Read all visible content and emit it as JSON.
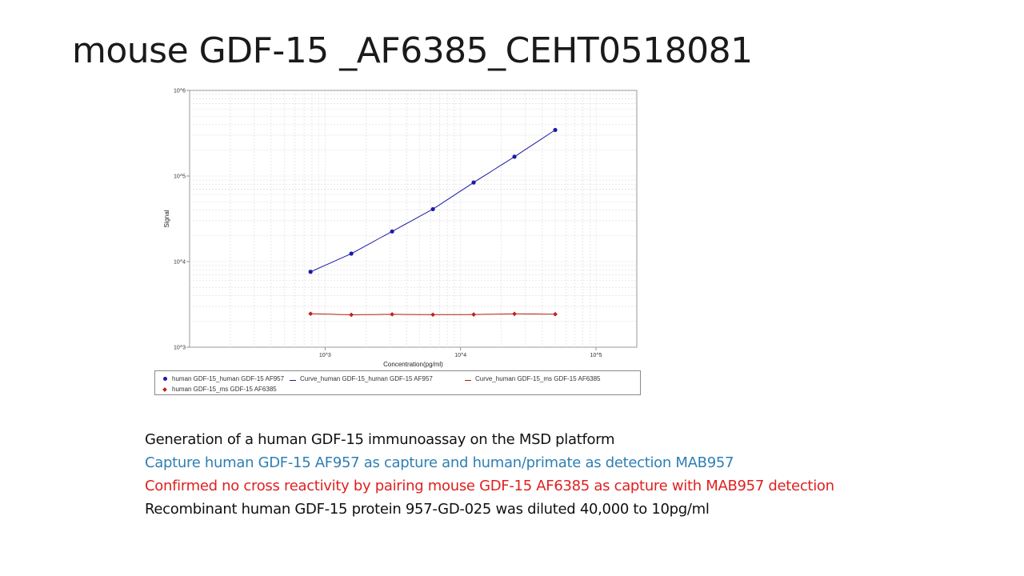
{
  "slide": {
    "title": "mouse GDF-15 _AF6385_CEHT0518081",
    "lines": [
      {
        "text": "Generation of a human GDF-15 immunoassay on the MSD platform",
        "color": "#111111"
      },
      {
        "text": "Capture human GDF-15 AF957 as capture and human/primate as detection MAB957",
        "color": "#2e7fb4"
      },
      {
        "text": "Confirmed no cross reactivity by pairing mouse GDF-15 AF6385 as capture with MAB957 detection",
        "color": "#e02020"
      },
      {
        "text": "Recombinant human GDF-15 protein 957-GD-025 was diluted 40,000 to 10pg/ml",
        "color": "#111111"
      }
    ]
  },
  "chart_data": {
    "type": "scatter",
    "xscale": "log",
    "yscale": "log",
    "xlabel": "Concentration(pg/ml)",
    "ylabel": "Signal",
    "xlim": [
      100,
      200000
    ],
    "ylim": [
      1000,
      1000000
    ],
    "xticks": [
      1000,
      10000,
      100000
    ],
    "xtick_labels": [
      "10^3",
      "10^4",
      "10^5"
    ],
    "yticks": [
      1000,
      10000,
      100000,
      1000000
    ],
    "ytick_labels": [
      "10^3",
      "10^4",
      "10^5",
      "10^6"
    ],
    "grid": true,
    "legend_position": "bottom",
    "series": [
      {
        "name": "human GDF-15_human GDF-15 AF957",
        "marker": "circle",
        "color": "#1a1aa8",
        "x": [
          781.25,
          1562.5,
          3125,
          6250,
          12500,
          25000,
          50000
        ],
        "y": [
          7600,
          12400,
          22500,
          41000,
          84000,
          168000,
          345000
        ]
      },
      {
        "name": "human GDF-15_ms GDF-15 AF6385",
        "marker": "diamond",
        "color": "#c0201a",
        "x": [
          781.25,
          1562.5,
          3125,
          6250,
          12500,
          25000,
          50000
        ],
        "y": [
          2460,
          2390,
          2420,
          2400,
          2410,
          2450,
          2430
        ]
      }
    ],
    "curves": [
      {
        "name": "Curve_human GDF-15_human GDF-15 AF957",
        "color": "#1a1aa8",
        "fits": 0
      },
      {
        "name": "Curve_human GDF-15_ms GDF-15 AF6385",
        "color": "#b01a10",
        "fits": 1
      }
    ],
    "legend": [
      {
        "label": "human GDF-15_human GDF-15 AF957",
        "symbol": "circle",
        "color": "#1a1aa8"
      },
      {
        "label": "Curve_human GDF-15_human GDF-15 AF957",
        "symbol": "line",
        "color": "#1a1aa8"
      },
      {
        "label": "Curve_human GDF-15_ms GDF-15 AF6385",
        "symbol": "line",
        "color": "#b01a10"
      },
      {
        "label": "human GDF-15_ms GDF-15 AF6385",
        "symbol": "diamond",
        "color": "#c0201a"
      }
    ]
  }
}
